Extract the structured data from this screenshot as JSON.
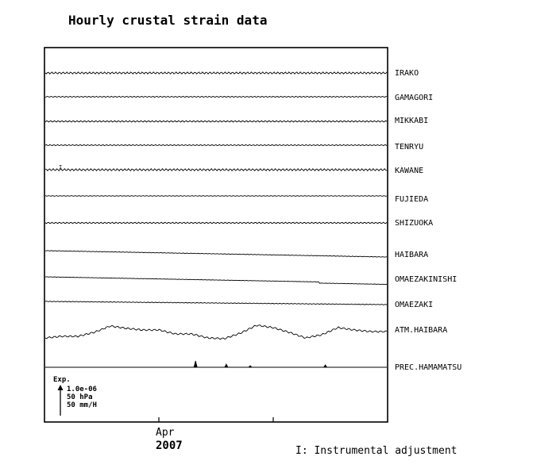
{
  "chart_data": {
    "type": "line",
    "title": "Hourly crustal strain data",
    "x_tick_labels": [
      {
        "month": "Apr",
        "year": "2007"
      }
    ],
    "series": [
      {
        "name": "IRAKO",
        "baseline": 0.0,
        "trend": 0.0,
        "wave_amp": 1.2
      },
      {
        "name": "GAMAGORI",
        "baseline": 0.0,
        "trend": 0.0,
        "wave_amp": 0.6
      },
      {
        "name": "MIKKABI",
        "baseline": 0.0,
        "trend": 0.0,
        "wave_amp": 0.9
      },
      {
        "name": "TENRYU",
        "baseline": 0.0,
        "trend": 0.0,
        "wave_amp": 0.6
      },
      {
        "name": "KAWANE",
        "baseline": 0.0,
        "trend": 0.0,
        "wave_amp": 1.3
      },
      {
        "name": "FUJIEDA",
        "baseline": 0.0,
        "trend": 0.0,
        "wave_amp": 0.4
      },
      {
        "name": "SHIZUOKA",
        "baseline": 0.0,
        "trend": 0.0,
        "wave_amp": 0.8
      },
      {
        "name": "HAIBARA",
        "baseline": 0.0,
        "trend": 1.0,
        "wave_amp": 0.3
      },
      {
        "name": "OMAEZAKINISHI",
        "baseline": 0.0,
        "trend": 1.0,
        "wave_amp": 0.2
      },
      {
        "name": "OMAEZAKI",
        "baseline": 0.0,
        "trend": 0.5,
        "wave_amp": 0.4
      },
      {
        "name": "ATM.HAIBARA",
        "baseline": 0.0,
        "trend": 0.0,
        "wave_amp": 1.5
      },
      {
        "name": "PREC.HAMAMATSU",
        "baseline": 0.0,
        "trend": 0.0,
        "wave_amp": 0.0
      }
    ],
    "atm_haibara_profile": [
      0,
      2,
      2,
      7,
      15,
      12,
      10,
      10,
      5,
      5,
      0,
      -1,
      6,
      16,
      13,
      7,
      0,
      4,
      13,
      10,
      8,
      8
    ],
    "prec_hamamatsu_spikes": [
      {
        "position": 0.44,
        "value": 8
      },
      {
        "position": 0.53,
        "value": 4
      },
      {
        "position": 0.6,
        "value": 2
      },
      {
        "position": 0.82,
        "value": 3
      }
    ],
    "instrumental_marks": [
      {
        "series": "KAWANE",
        "label": "I"
      }
    ],
    "scale_legend": {
      "label": "Exp.",
      "items": [
        "1.0e-06",
        "50 hPa",
        "50 mm/H"
      ]
    },
    "footnote": "I: Instrumental adjustment",
    "grid": false
  }
}
